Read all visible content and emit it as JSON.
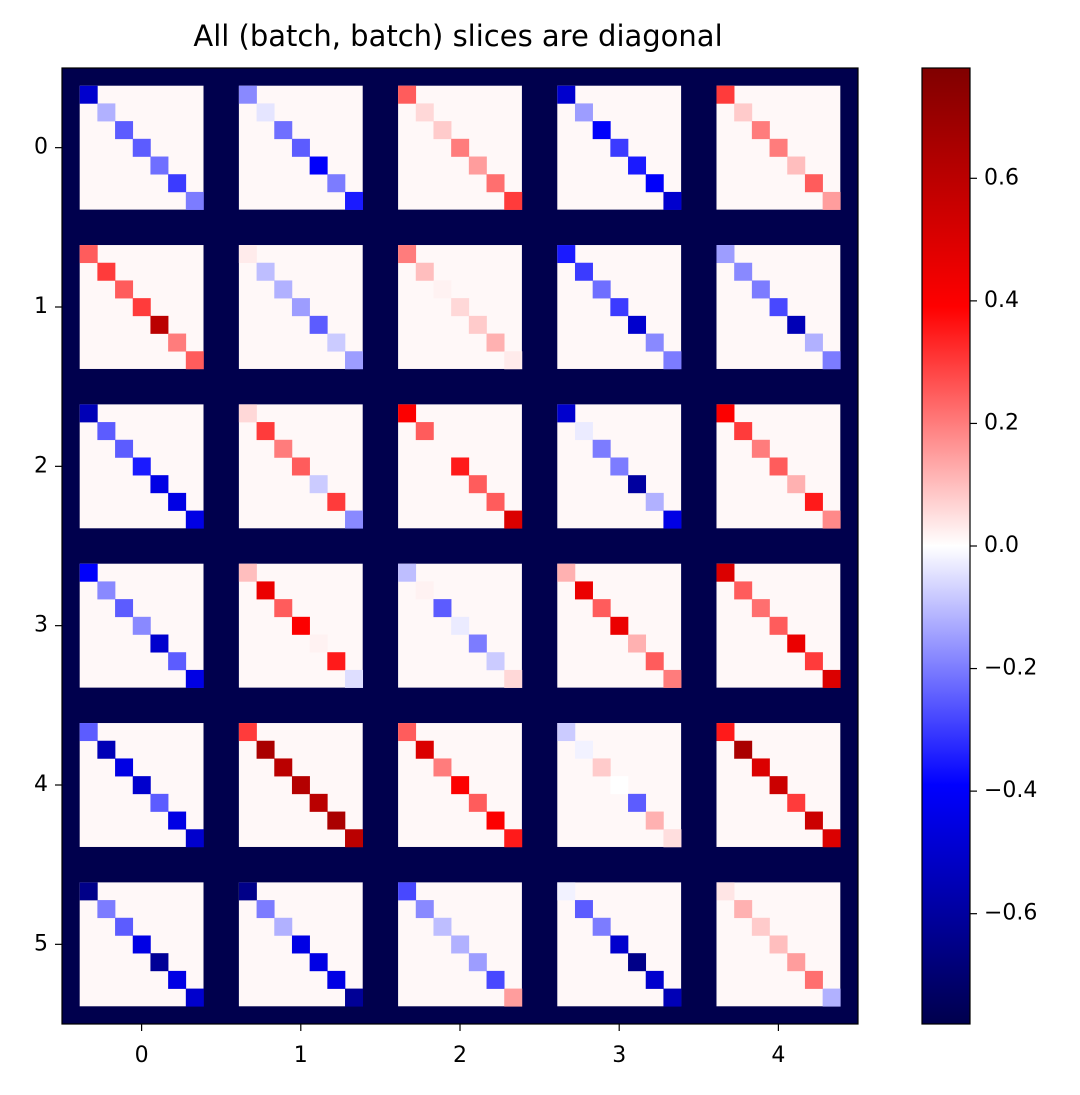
{
  "chart_data": {
    "type": "block-heatmap",
    "title": "All (batch, batch) slices are diagonal",
    "colormap": "seismic",
    "x": [
      0,
      1,
      2,
      3,
      4
    ],
    "y": [
      0,
      1,
      2,
      3,
      4,
      5
    ],
    "off_diagonal_value": 0.01,
    "padding_value": -0.78,
    "clim": [
      -0.78,
      0.78
    ],
    "colorbar_ticks": [
      {
        "value": -0.6,
        "label": "−0.6"
      },
      {
        "value": -0.4,
        "label": "−0.4"
      },
      {
        "value": -0.2,
        "label": "−0.2"
      },
      {
        "value": 0,
        "label": "0.0"
      },
      0.2,
      0.4,
      0.6
    ],
    "values": [
      [
        [
          -0.5,
          -0.12,
          -0.25,
          -0.25,
          -0.22,
          -0.3,
          -0.2
        ],
        [
          -0.18,
          -0.04,
          -0.22,
          -0.25,
          -0.4,
          -0.2,
          -0.35
        ],
        [
          0.25,
          0.06,
          0.08,
          0.2,
          0.15,
          0.22,
          0.3
        ],
        [
          -0.5,
          -0.15,
          -0.4,
          -0.3,
          -0.35,
          -0.4,
          -0.5
        ],
        [
          0.3,
          0.08,
          0.2,
          0.2,
          0.1,
          0.25,
          0.15
        ]
      ],
      [
        [
          0.25,
          0.3,
          0.25,
          0.3,
          0.6,
          0.2,
          0.25
        ],
        [
          0.03,
          -0.1,
          -0.12,
          -0.15,
          -0.25,
          -0.08,
          -0.15
        ],
        [
          0.2,
          0.1,
          0.02,
          0.06,
          0.08,
          0.12,
          0.03
        ],
        [
          -0.35,
          -0.3,
          -0.22,
          -0.3,
          -0.5,
          -0.18,
          -0.2
        ],
        [
          -0.15,
          -0.18,
          -0.2,
          -0.28,
          -0.55,
          -0.12,
          -0.2
        ]
      ],
      [
        [
          -0.55,
          -0.25,
          -0.25,
          -0.35,
          -0.45,
          -0.45,
          -0.45
        ],
        [
          0.06,
          0.3,
          0.2,
          0.25,
          -0.08,
          0.3,
          -0.18
        ],
        [
          0.4,
          0.25,
          0.01,
          0.35,
          0.25,
          0.25,
          0.5
        ],
        [
          -0.5,
          -0.03,
          -0.2,
          -0.2,
          -0.6,
          -0.12,
          -0.45
        ],
        [
          0.4,
          0.3,
          0.2,
          0.25,
          0.12,
          0.35,
          0.18
        ]
      ],
      [
        [
          -0.4,
          -0.18,
          -0.25,
          -0.18,
          -0.5,
          -0.25,
          -0.45
        ],
        [
          0.1,
          0.45,
          0.25,
          0.4,
          0.02,
          0.35,
          -0.05
        ],
        [
          -0.1,
          0.02,
          -0.25,
          -0.03,
          -0.2,
          -0.08,
          0.06
        ],
        [
          0.12,
          0.45,
          0.25,
          0.45,
          0.12,
          0.25,
          0.2
        ],
        [
          0.5,
          0.25,
          0.22,
          0.25,
          0.45,
          0.3,
          0.5
        ]
      ],
      [
        [
          -0.25,
          -0.55,
          -0.45,
          -0.5,
          -0.25,
          -0.45,
          -0.5
        ],
        [
          0.3,
          0.65,
          0.6,
          0.62,
          0.6,
          0.65,
          0.6
        ],
        [
          0.25,
          0.5,
          0.2,
          0.4,
          0.25,
          0.4,
          0.35
        ],
        [
          -0.08,
          -0.02,
          0.08,
          0.0,
          -0.25,
          0.12,
          0.05
        ],
        [
          0.35,
          0.65,
          0.5,
          0.55,
          0.3,
          0.55,
          0.5
        ]
      ],
      [
        [
          -0.65,
          -0.2,
          -0.25,
          -0.45,
          -0.62,
          -0.45,
          -0.5
        ],
        [
          -0.65,
          -0.2,
          -0.12,
          -0.45,
          -0.45,
          -0.45,
          -0.62
        ],
        [
          -0.28,
          -0.18,
          -0.1,
          -0.12,
          -0.15,
          -0.28,
          0.15
        ],
        [
          -0.02,
          -0.25,
          -0.2,
          -0.5,
          -0.65,
          -0.5,
          -0.55
        ],
        [
          0.04,
          0.12,
          0.08,
          0.1,
          0.15,
          0.22,
          -0.12
        ]
      ]
    ]
  }
}
